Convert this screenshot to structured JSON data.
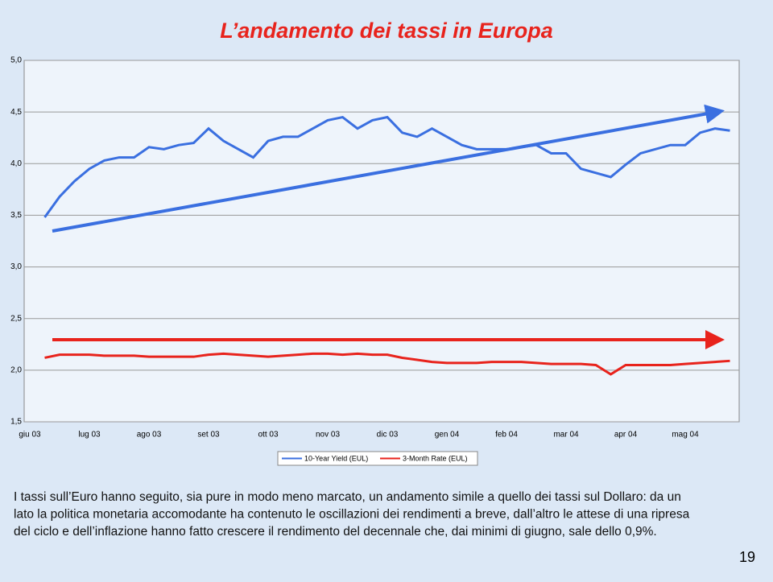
{
  "chart_data": {
    "type": "line",
    "title": "L’andamento dei tassi in Europa",
    "categories": [
      "giu 03",
      null,
      null,
      null,
      "lug 03",
      null,
      null,
      null,
      "ago 03",
      null,
      null,
      null,
      "set 03",
      null,
      null,
      null,
      "ott 03",
      null,
      null,
      null,
      "nov 03",
      null,
      null,
      null,
      "dic 03",
      null,
      null,
      null,
      "gen 04",
      null,
      null,
      null,
      "feb 04",
      null,
      null,
      null,
      "mar 04",
      null,
      null,
      null,
      "apr 04",
      null,
      null,
      null,
      "mag 04",
      null,
      null,
      null
    ],
    "series": [
      {
        "name": "10-Year Yield (EUL)",
        "color": "#3a6fe0",
        "values": [
          null,
          3.48,
          3.68,
          3.83,
          3.95,
          4.03,
          4.06,
          4.06,
          4.16,
          4.14,
          4.18,
          4.2,
          4.34,
          4.22,
          4.14,
          4.06,
          4.22,
          4.26,
          4.26,
          4.34,
          4.42,
          4.45,
          4.34,
          4.42,
          4.45,
          4.3,
          4.26,
          4.34,
          4.26,
          4.18,
          4.14,
          4.14,
          4.14,
          4.16,
          4.18,
          4.1,
          4.1,
          3.95,
          3.91,
          3.87,
          3.99,
          4.1,
          4.14,
          4.18,
          4.18,
          4.3,
          4.34,
          4.32
        ]
      },
      {
        "name": "3-Month Rate (EUL)",
        "color": "#e8231c",
        "values": [
          null,
          2.12,
          2.15,
          2.15,
          2.15,
          2.14,
          2.14,
          2.14,
          2.13,
          2.13,
          2.13,
          2.13,
          2.15,
          2.16,
          2.15,
          2.14,
          2.13,
          2.14,
          2.15,
          2.16,
          2.16,
          2.15,
          2.16,
          2.15,
          2.15,
          2.12,
          2.1,
          2.08,
          2.07,
          2.07,
          2.07,
          2.08,
          2.08,
          2.08,
          2.07,
          2.06,
          2.06,
          2.06,
          2.05,
          1.96,
          2.05,
          2.05,
          2.05,
          2.05,
          2.06,
          2.07,
          2.08,
          2.09
        ]
      }
    ],
    "ylim": [
      1.5,
      5
    ],
    "yticks": [
      {
        "value": 1.5,
        "label": "1,5"
      },
      {
        "value": 2,
        "label": "2,0"
      },
      {
        "value": 2.5,
        "label": "2,5"
      },
      {
        "value": 3,
        "label": "3,0"
      },
      {
        "value": 3.5,
        "label": "3,5"
      },
      {
        "value": 4,
        "label": "4,0"
      },
      {
        "value": 4.5,
        "label": "4,5"
      },
      {
        "value": 5,
        "label": "5,0"
      }
    ],
    "grid": true
  },
  "text": {
    "lines": [
      "I tassi sull’Euro hanno seguito, sia pure in modo meno marcato, un andamento simile a quello dei tassi sul Dollaro: da un",
      "lato la politica monetaria accomodante ha contenuto le oscillazioni dei rendimenti a breve, dall’altro le attese di una ripresa",
      "del ciclo e dell’inflazione hanno fatto crescere il rendimento del decennale che, dai minimi di giugno, sale dello 0,9%."
    ]
  },
  "page_number": "19"
}
